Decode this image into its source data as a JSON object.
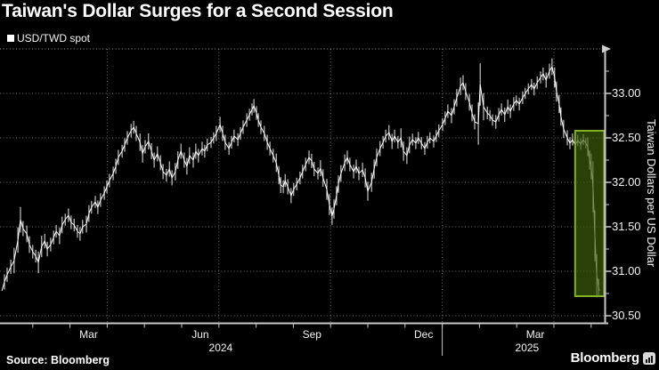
{
  "title": "Taiwan's Dollar Surges for a Second Session",
  "legend": {
    "marker": "■",
    "label": "USD/TWD spot"
  },
  "source": "Source: Bloomberg",
  "brand": {
    "wordmark": "Bloomberg",
    "logo_icon": "bloomberg-bars-icon"
  },
  "colors": {
    "background": "#000000",
    "text": "#f2f2f2",
    "series": "#ffffff",
    "grid": "#6f6f6f",
    "axis": "#c9c9c9",
    "highlight_fill": "#405f0c",
    "highlight_stroke": "#82b026"
  },
  "chart_data": {
    "type": "line",
    "title": "Taiwan's Dollar Surges for a Second Session",
    "x_unit": "months since 2024-01-01",
    "x_range": [
      0,
      16.4
    ],
    "y_axis": {
      "title": "Taiwan Dollars per US Dollar",
      "range": [
        30.5,
        33.5
      ],
      "major_ticks": [
        {
          "label": "33.00",
          "value": 33.0
        },
        {
          "label": "32.50",
          "value": 32.5
        },
        {
          "label": "32.00",
          "value": 32.0
        },
        {
          "label": "31.50",
          "value": 31.5
        },
        {
          "label": "31.00",
          "value": 31.0
        },
        {
          "label": "30.50",
          "value": 30.5
        }
      ],
      "minor_ticks": [
        33.25,
        32.75,
        32.25,
        31.75,
        31.25,
        30.75
      ],
      "grid": "dotted"
    },
    "x_axis": {
      "month_labels": [
        {
          "label": "Mar",
          "m": 2.5
        },
        {
          "label": "Jun",
          "m": 5.5
        },
        {
          "label": "Sep",
          "m": 8.5
        },
        {
          "label": "Dec",
          "m": 11.5
        },
        {
          "label": "Mar",
          "m": 14.5
        }
      ],
      "year_labels": [
        {
          "label": "2024",
          "m": 6.05
        },
        {
          "label": "2025",
          "m": 14.28
        }
      ],
      "quarter_gridlines_m": [
        3,
        6,
        9,
        12,
        15
      ],
      "monthly_ticks_m": [
        1,
        2,
        3,
        4,
        5,
        6,
        7,
        8,
        9,
        10,
        11,
        12,
        13,
        14,
        15,
        16
      ],
      "year_separator_m": 12,
      "grid": "dotted"
    },
    "highlight_box": {
      "from_m": 15.57,
      "to_m": 16.35,
      "top_value": 32.58,
      "bottom_value": 30.72
    },
    "series": [
      {
        "name": "USD/TWD spot",
        "points": [
          [
            0.17,
            30.78
          ],
          [
            0.24,
            30.88
          ],
          [
            0.31,
            30.96
          ],
          [
            0.41,
            31.05
          ],
          [
            0.5,
            31.12
          ],
          [
            0.6,
            31.35
          ],
          [
            0.67,
            31.58
          ],
          [
            0.74,
            31.48
          ],
          [
            0.84,
            31.42
          ],
          [
            0.91,
            31.3
          ],
          [
            1.0,
            31.22
          ],
          [
            1.08,
            31.17
          ],
          [
            1.15,
            31.1
          ],
          [
            1.24,
            31.28
          ],
          [
            1.32,
            31.34
          ],
          [
            1.39,
            31.25
          ],
          [
            1.48,
            31.3
          ],
          [
            1.56,
            31.38
          ],
          [
            1.63,
            31.45
          ],
          [
            1.72,
            31.4
          ],
          [
            1.79,
            31.52
          ],
          [
            1.87,
            31.58
          ],
          [
            1.96,
            31.63
          ],
          [
            2.03,
            31.55
          ],
          [
            2.11,
            31.52
          ],
          [
            2.2,
            31.45
          ],
          [
            2.27,
            31.42
          ],
          [
            2.34,
            31.5
          ],
          [
            2.44,
            31.53
          ],
          [
            2.51,
            31.65
          ],
          [
            2.58,
            31.72
          ],
          [
            2.68,
            31.78
          ],
          [
            2.75,
            31.72
          ],
          [
            2.82,
            31.8
          ],
          [
            2.92,
            31.88
          ],
          [
            2.99,
            31.95
          ],
          [
            3.06,
            32.02
          ],
          [
            3.16,
            32.1
          ],
          [
            3.23,
            32.18
          ],
          [
            3.3,
            32.28
          ],
          [
            3.4,
            32.35
          ],
          [
            3.47,
            32.42
          ],
          [
            3.54,
            32.5
          ],
          [
            3.64,
            32.58
          ],
          [
            3.71,
            32.62
          ],
          [
            3.78,
            32.55
          ],
          [
            3.88,
            32.45
          ],
          [
            3.95,
            32.32
          ],
          [
            4.02,
            32.4
          ],
          [
            4.11,
            32.46
          ],
          [
            4.19,
            32.35
          ],
          [
            4.26,
            32.25
          ],
          [
            4.35,
            32.32
          ],
          [
            4.43,
            32.22
          ],
          [
            4.5,
            32.12
          ],
          [
            4.59,
            32.08
          ],
          [
            4.67,
            32.15
          ],
          [
            4.74,
            32.05
          ],
          [
            4.83,
            32.12
          ],
          [
            4.9,
            32.25
          ],
          [
            4.98,
            32.35
          ],
          [
            5.07,
            32.25
          ],
          [
            5.14,
            32.18
          ],
          [
            5.21,
            32.3
          ],
          [
            5.31,
            32.25
          ],
          [
            5.38,
            32.35
          ],
          [
            5.45,
            32.3
          ],
          [
            5.55,
            32.38
          ],
          [
            5.62,
            32.35
          ],
          [
            5.69,
            32.42
          ],
          [
            5.79,
            32.45
          ],
          [
            5.86,
            32.5
          ],
          [
            5.93,
            32.55
          ],
          [
            6.03,
            32.65
          ],
          [
            6.1,
            32.55
          ],
          [
            6.17,
            32.45
          ],
          [
            6.27,
            32.38
          ],
          [
            6.34,
            32.45
          ],
          [
            6.41,
            32.52
          ],
          [
            6.51,
            32.48
          ],
          [
            6.58,
            32.55
          ],
          [
            6.65,
            32.62
          ],
          [
            6.75,
            32.7
          ],
          [
            6.82,
            32.76
          ],
          [
            6.89,
            32.82
          ],
          [
            6.94,
            32.86
          ],
          [
            7.01,
            32.78
          ],
          [
            7.06,
            32.7
          ],
          [
            7.13,
            32.62
          ],
          [
            7.22,
            32.55
          ],
          [
            7.3,
            32.45
          ],
          [
            7.37,
            32.38
          ],
          [
            7.46,
            32.3
          ],
          [
            7.54,
            32.22
          ],
          [
            7.61,
            32.08
          ],
          [
            7.66,
            31.97
          ],
          [
            7.73,
            31.95
          ],
          [
            7.78,
            32.02
          ],
          [
            7.85,
            31.95
          ],
          [
            7.94,
            31.85
          ],
          [
            8.01,
            31.92
          ],
          [
            8.09,
            31.98
          ],
          [
            8.18,
            32.05
          ],
          [
            8.25,
            32.12
          ],
          [
            8.33,
            32.2
          ],
          [
            8.42,
            32.28
          ],
          [
            8.49,
            32.24
          ],
          [
            8.56,
            32.15
          ],
          [
            8.66,
            32.1
          ],
          [
            8.73,
            32.16
          ],
          [
            8.8,
            32.05
          ],
          [
            8.9,
            31.92
          ],
          [
            8.97,
            31.75
          ],
          [
            9.04,
            31.62
          ],
          [
            9.09,
            31.7
          ],
          [
            9.16,
            31.85
          ],
          [
            9.21,
            31.98
          ],
          [
            9.28,
            32.1
          ],
          [
            9.38,
            32.22
          ],
          [
            9.45,
            32.28
          ],
          [
            9.52,
            32.2
          ],
          [
            9.62,
            32.12
          ],
          [
            9.69,
            32.18
          ],
          [
            9.76,
            32.1
          ],
          [
            9.86,
            32.14
          ],
          [
            9.93,
            32.05
          ],
          [
            10.0,
            31.9
          ],
          [
            10.1,
            32.0
          ],
          [
            10.17,
            32.15
          ],
          [
            10.24,
            32.28
          ],
          [
            10.33,
            32.38
          ],
          [
            10.41,
            32.45
          ],
          [
            10.48,
            32.52
          ],
          [
            10.57,
            32.56
          ],
          [
            10.65,
            32.46
          ],
          [
            10.72,
            32.52
          ],
          [
            10.81,
            32.45
          ],
          [
            10.89,
            32.5
          ],
          [
            10.96,
            32.35
          ],
          [
            11.05,
            32.3
          ],
          [
            11.12,
            32.42
          ],
          [
            11.2,
            32.48
          ],
          [
            11.29,
            32.44
          ],
          [
            11.36,
            32.5
          ],
          [
            11.44,
            32.44
          ],
          [
            11.53,
            32.38
          ],
          [
            11.6,
            32.45
          ],
          [
            11.67,
            32.5
          ],
          [
            11.77,
            32.46
          ],
          [
            11.84,
            32.52
          ],
          [
            11.91,
            32.58
          ],
          [
            12.01,
            32.65
          ],
          [
            12.08,
            32.72
          ],
          [
            12.15,
            32.8
          ],
          [
            12.25,
            32.75
          ],
          [
            12.32,
            32.85
          ],
          [
            12.39,
            32.95
          ],
          [
            12.49,
            33.08
          ],
          [
            12.56,
            33.12
          ],
          [
            12.63,
            33.02
          ],
          [
            12.73,
            32.9
          ],
          [
            12.8,
            32.78
          ],
          [
            12.87,
            32.68
          ],
          [
            12.97,
            32.66
          ],
          [
            13.02,
            33.1
          ],
          [
            13.11,
            32.85
          ],
          [
            13.21,
            32.78
          ],
          [
            13.28,
            32.75
          ],
          [
            13.35,
            32.7
          ],
          [
            13.44,
            32.68
          ],
          [
            13.52,
            32.76
          ],
          [
            13.59,
            32.82
          ],
          [
            13.68,
            32.76
          ],
          [
            13.76,
            32.85
          ],
          [
            13.83,
            32.8
          ],
          [
            13.92,
            32.88
          ],
          [
            13.99,
            32.92
          ],
          [
            14.07,
            32.88
          ],
          [
            14.16,
            32.95
          ],
          [
            14.23,
            33.0
          ],
          [
            14.31,
            33.05
          ],
          [
            14.4,
            33.1
          ],
          [
            14.47,
            33.05
          ],
          [
            14.55,
            33.12
          ],
          [
            14.64,
            33.18
          ],
          [
            14.71,
            33.22
          ],
          [
            14.79,
            33.15
          ],
          [
            14.88,
            33.25
          ],
          [
            14.95,
            33.3
          ],
          [
            15.02,
            33.18
          ],
          [
            15.07,
            33.02
          ],
          [
            15.14,
            32.88
          ],
          [
            15.19,
            32.74
          ],
          [
            15.26,
            32.6
          ],
          [
            15.36,
            32.5
          ],
          [
            15.43,
            32.44
          ],
          [
            15.5,
            32.48
          ],
          [
            15.57,
            32.42
          ],
          [
            15.64,
            32.47
          ],
          [
            15.72,
            32.43
          ],
          [
            15.79,
            32.48
          ],
          [
            15.86,
            32.44
          ],
          [
            15.91,
            32.4
          ],
          [
            15.96,
            32.25
          ],
          [
            16.0,
            32.18
          ],
          [
            16.05,
            31.95
          ],
          [
            16.1,
            31.4
          ],
          [
            16.15,
            30.95
          ],
          [
            16.2,
            30.82
          ],
          [
            16.22,
            30.78
          ]
        ]
      }
    ]
  }
}
